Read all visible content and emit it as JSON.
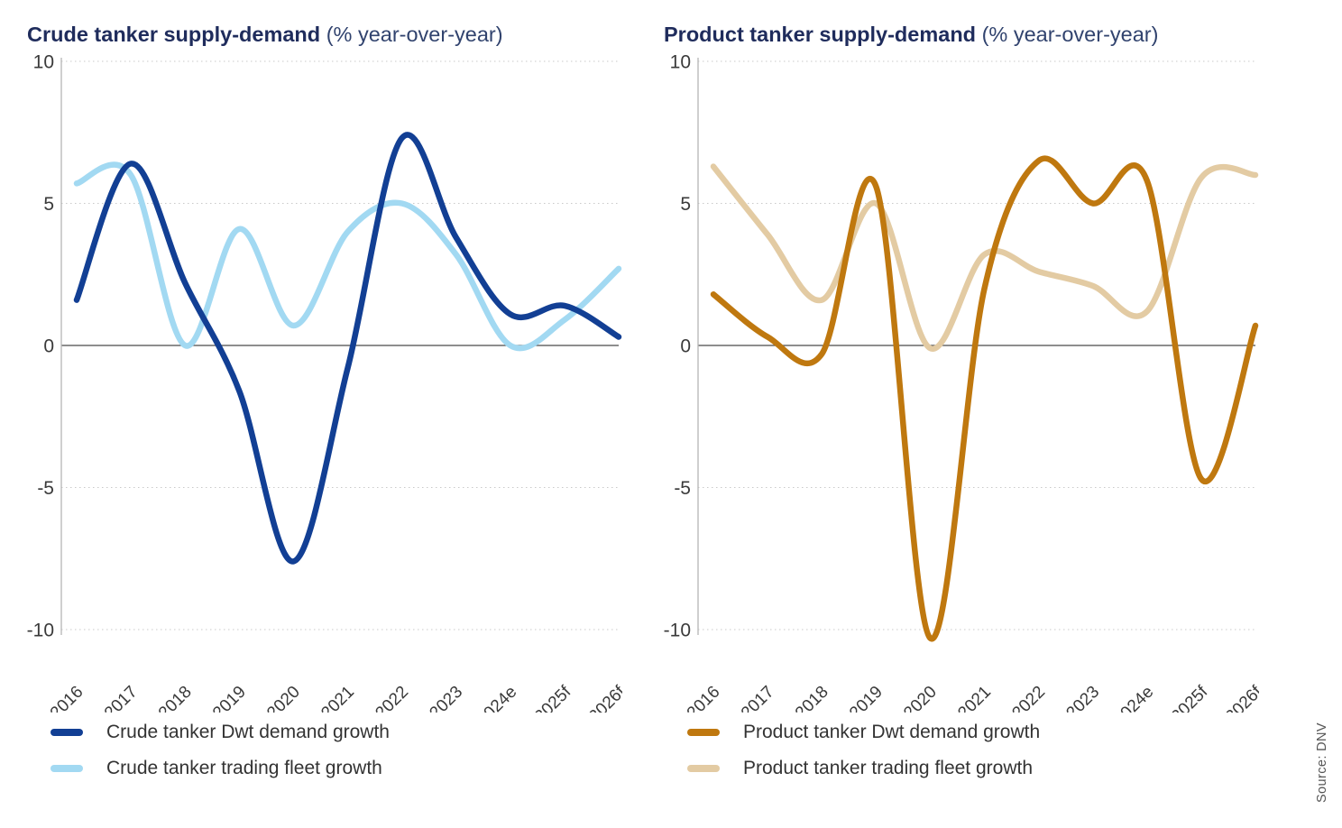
{
  "page": {
    "source_note": "Source: DNV"
  },
  "chart_data": [
    {
      "type": "line",
      "title": "Crude tanker supply-demand",
      "subtitle": "(% year-over-year)",
      "categories": [
        "2016",
        "2017",
        "2018",
        "2019",
        "2020",
        "2021",
        "2022",
        "2023",
        "2024e",
        "2025f",
        "2026f"
      ],
      "series": [
        {
          "name": "Crude tanker Dwt demand growth",
          "color": "#123f94",
          "values": [
            1.6,
            6.4,
            2.2,
            -1.6,
            -7.6,
            -0.8,
            7.3,
            3.8,
            1.1,
            1.4,
            0.3
          ]
        },
        {
          "name": "Crude tanker trading fleet growth",
          "color": "#a2d9f2",
          "values": [
            5.7,
            6.0,
            0.0,
            4.1,
            0.7,
            4.0,
            5.0,
            3.2,
            0.0,
            0.9,
            2.7
          ]
        }
      ],
      "ylim": [
        -10,
        10
      ],
      "yticks": [
        10,
        5,
        0,
        -5,
        -10
      ],
      "grid": "dotted-horizontal",
      "zero_line": true,
      "legend_position": "bottom"
    },
    {
      "type": "line",
      "title": "Product tanker supply-demand",
      "subtitle": "(% year-over-year)",
      "categories": [
        "2016",
        "2017",
        "2018",
        "2019",
        "2020",
        "2021",
        "2022",
        "2023",
        "2024e",
        "2025f",
        "2026f"
      ],
      "series": [
        {
          "name": "Product tanker Dwt demand growth",
          "color": "#bf780f",
          "values": [
            1.8,
            0.3,
            -0.3,
            5.6,
            -10.3,
            2.0,
            6.5,
            5.0,
            5.8,
            -4.7,
            0.7
          ]
        },
        {
          "name": "Product tanker trading fleet growth",
          "color": "#e3cba3",
          "values": [
            6.3,
            3.9,
            1.6,
            5.0,
            -0.1,
            3.2,
            2.6,
            2.1,
            1.2,
            5.9,
            6.0
          ]
        }
      ],
      "ylim": [
        -10,
        10
      ],
      "yticks": [
        10,
        5,
        0,
        -5,
        -10
      ],
      "grid": "dotted-horizontal",
      "zero_line": true,
      "legend_position": "bottom"
    }
  ],
  "style": {
    "grid_color": "#c9c9c9",
    "zero_line_color": "#4a4a4a",
    "axis_color": "#b5b5b5"
  }
}
